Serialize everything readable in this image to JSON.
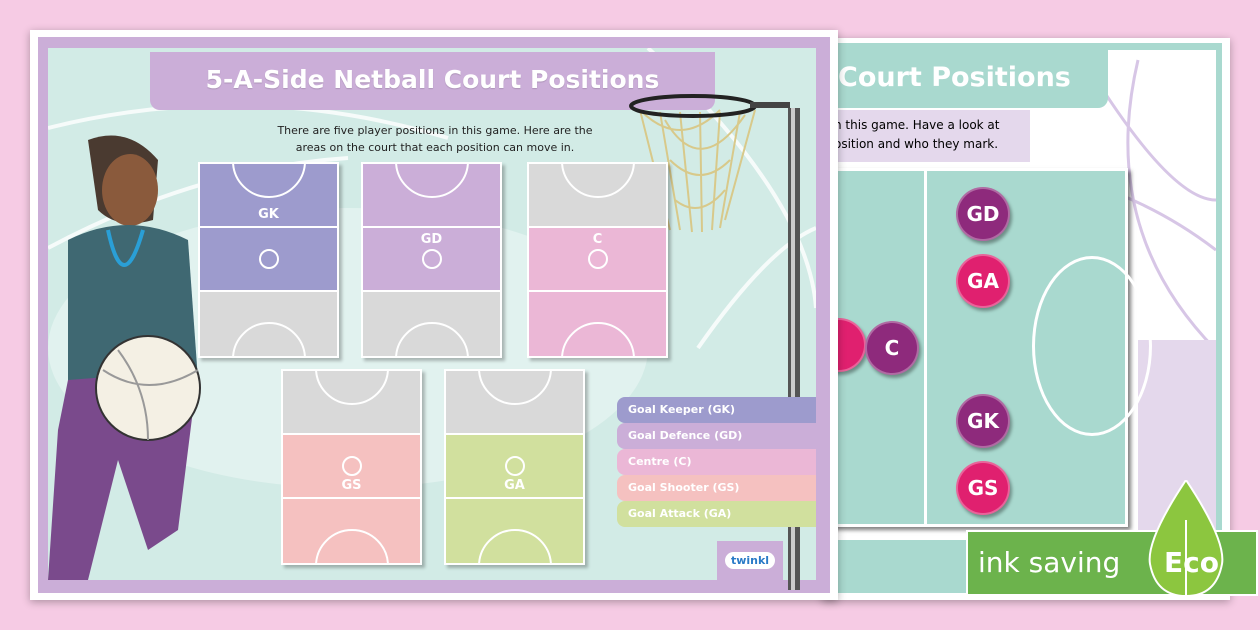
{
  "sheet1": {
    "title": "5-A-Side Netball Court Positions",
    "intro_line1": "There are five player positions in this game. Here are the",
    "intro_line2": "areas on the court that each position can move in.",
    "courts": [
      {
        "label": "GK",
        "colors": [
          "#9d9bcd",
          "#9d9bcd",
          "#d9d9d9"
        ]
      },
      {
        "label": "GD",
        "colors": [
          "#cbaed8",
          "#cbaed8",
          "#d9d9d9"
        ]
      },
      {
        "label": "C",
        "colors": [
          "#d9d9d9",
          "#ebb7d6",
          "#ebb7d6"
        ]
      },
      {
        "label": "GS",
        "colors": [
          "#d9d9d9",
          "#f5c1c0",
          "#f5c1c0"
        ]
      },
      {
        "label": "GA",
        "colors": [
          "#d9d9d9",
          "#d1e09e",
          "#d1e09e"
        ]
      }
    ],
    "legend": [
      {
        "label": "Goal Keeper (GK)",
        "color": "#9d9bcd"
      },
      {
        "label": "Goal Defence (GD)",
        "color": "#cbaed8"
      },
      {
        "label": "Centre (C)",
        "color": "#ebb7d6"
      },
      {
        "label": "Goal Shooter (GS)",
        "color": "#f5c1c0"
      },
      {
        "label": "Goal Attack (GA)",
        "color": "#d1e09e"
      }
    ],
    "logo": "twinkl"
  },
  "sheet2": {
    "title": "Court Positions",
    "intro_line1": "n this game. Have a look at",
    "intro_line2": "osition and who they mark.",
    "players": [
      {
        "label": "GD",
        "color": "#8e2a7c"
      },
      {
        "label": "GA",
        "color": "#e0206f"
      },
      {
        "label": "C",
        "color": "#8e2a7c"
      },
      {
        "label": "GK",
        "color": "#8e2a7c"
      },
      {
        "label": "GS",
        "color": "#e0206f"
      }
    ]
  },
  "badge": {
    "text": "ink saving",
    "eco": "Eco",
    "color": "#6cb34c"
  }
}
